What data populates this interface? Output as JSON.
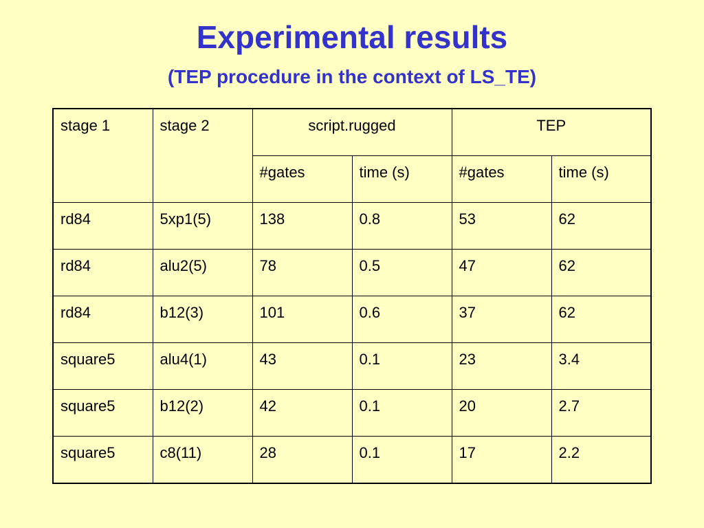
{
  "header": {
    "title": "Experimental results",
    "subtitle": "(TEP procedure in the context of LS_TE)"
  },
  "table": {
    "group_headers": [
      "stage 1",
      "stage 2",
      "script.rugged",
      "TEP"
    ],
    "sub_headers": [
      "#gates",
      "time (s)",
      "#gates",
      "time (s)"
    ],
    "rows": [
      [
        "rd84",
        "5xp1(5)",
        "138",
        "0.8",
        "53",
        "62"
      ],
      [
        "rd84",
        "alu2(5)",
        "78",
        "0.5",
        "47",
        "62"
      ],
      [
        "rd84",
        "b12(3)",
        "101",
        "0.6",
        "37",
        "62"
      ],
      [
        "square5",
        "alu4(1)",
        "43",
        "0.1",
        "23",
        "3.4"
      ],
      [
        "square5",
        "b12(2)",
        "42",
        "0.1",
        "20",
        "2.7"
      ],
      [
        "square5",
        "c8(11)",
        "28",
        "0.1",
        "17",
        "2.2"
      ]
    ]
  }
}
